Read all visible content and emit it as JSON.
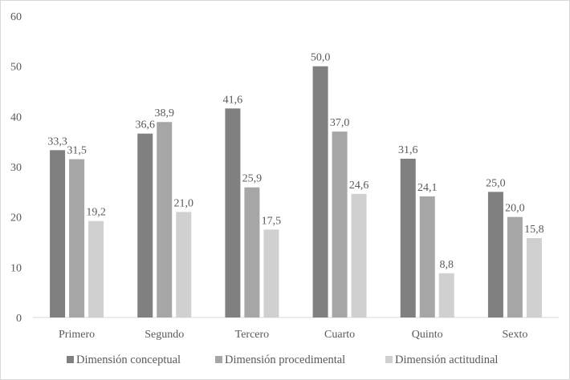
{
  "chart_data": {
    "type": "bar",
    "title": "",
    "xlabel": "",
    "ylabel": "",
    "ylim": [
      0,
      60
    ],
    "yticks": [
      0,
      10,
      20,
      30,
      40,
      50,
      60
    ],
    "grid": false,
    "legend_position": "bottom",
    "categories": [
      "Primero",
      "Segundo",
      "Tercero",
      "Cuarto",
      "Quinto",
      "Sexto"
    ],
    "series": [
      {
        "name": "Dimensión conceptual",
        "color": "#808080",
        "values": [
          33.3,
          36.6,
          41.6,
          50.0,
          31.6,
          25.0
        ],
        "labels": [
          "33,3",
          "36,6",
          "41,6",
          "50,0",
          "31,6",
          "25,0"
        ]
      },
      {
        "name": "Dimensión procedimental",
        "color": "#a6a6a6",
        "values": [
          31.5,
          38.9,
          25.9,
          37.0,
          24.1,
          20.0
        ],
        "labels": [
          "31,5",
          "38,9",
          "25,9",
          "37,0",
          "24,1",
          "20,0"
        ]
      },
      {
        "name": "Dimensión actitudinal",
        "color": "#d0d0d0",
        "values": [
          19.2,
          21.0,
          17.5,
          24.6,
          8.8,
          15.8
        ],
        "labels": [
          "19,2",
          "21,0",
          "17,5",
          "24,6",
          "8,8",
          "15,8"
        ]
      }
    ]
  }
}
